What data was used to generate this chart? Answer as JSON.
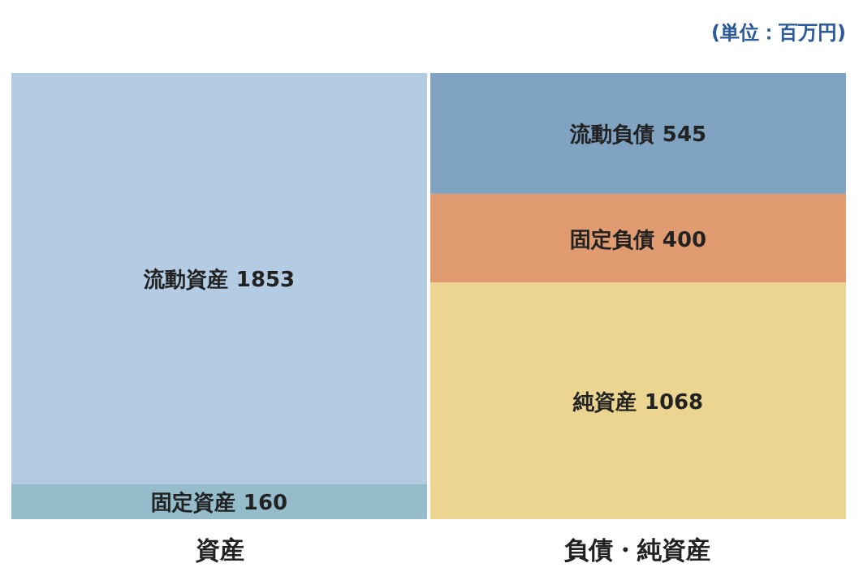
{
  "chart_data": {
    "type": "bar",
    "stacked": true,
    "data_labels": true,
    "categories": [
      "資産",
      "負債・純資産"
    ],
    "tick_labels": "x",
    "series": [
      {
        "name": "固定資産",
        "color": "#94bccb",
        "values": [
          160,
          null
        ]
      },
      {
        "name": "流動資産",
        "color": "#b3cce3",
        "values": [
          1853,
          null
        ]
      },
      {
        "name": "純資産",
        "color": "#ebd590",
        "values": [
          null,
          1068
        ]
      },
      {
        "name": "固定負債",
        "color": "#e09c70",
        "values": [
          null,
          400
        ]
      },
      {
        "name": "流動負債",
        "color": "#7fa3c0",
        "values": [
          null,
          545
        ]
      }
    ],
    "annotations": [
      "(単位：百万円)"
    ]
  }
}
